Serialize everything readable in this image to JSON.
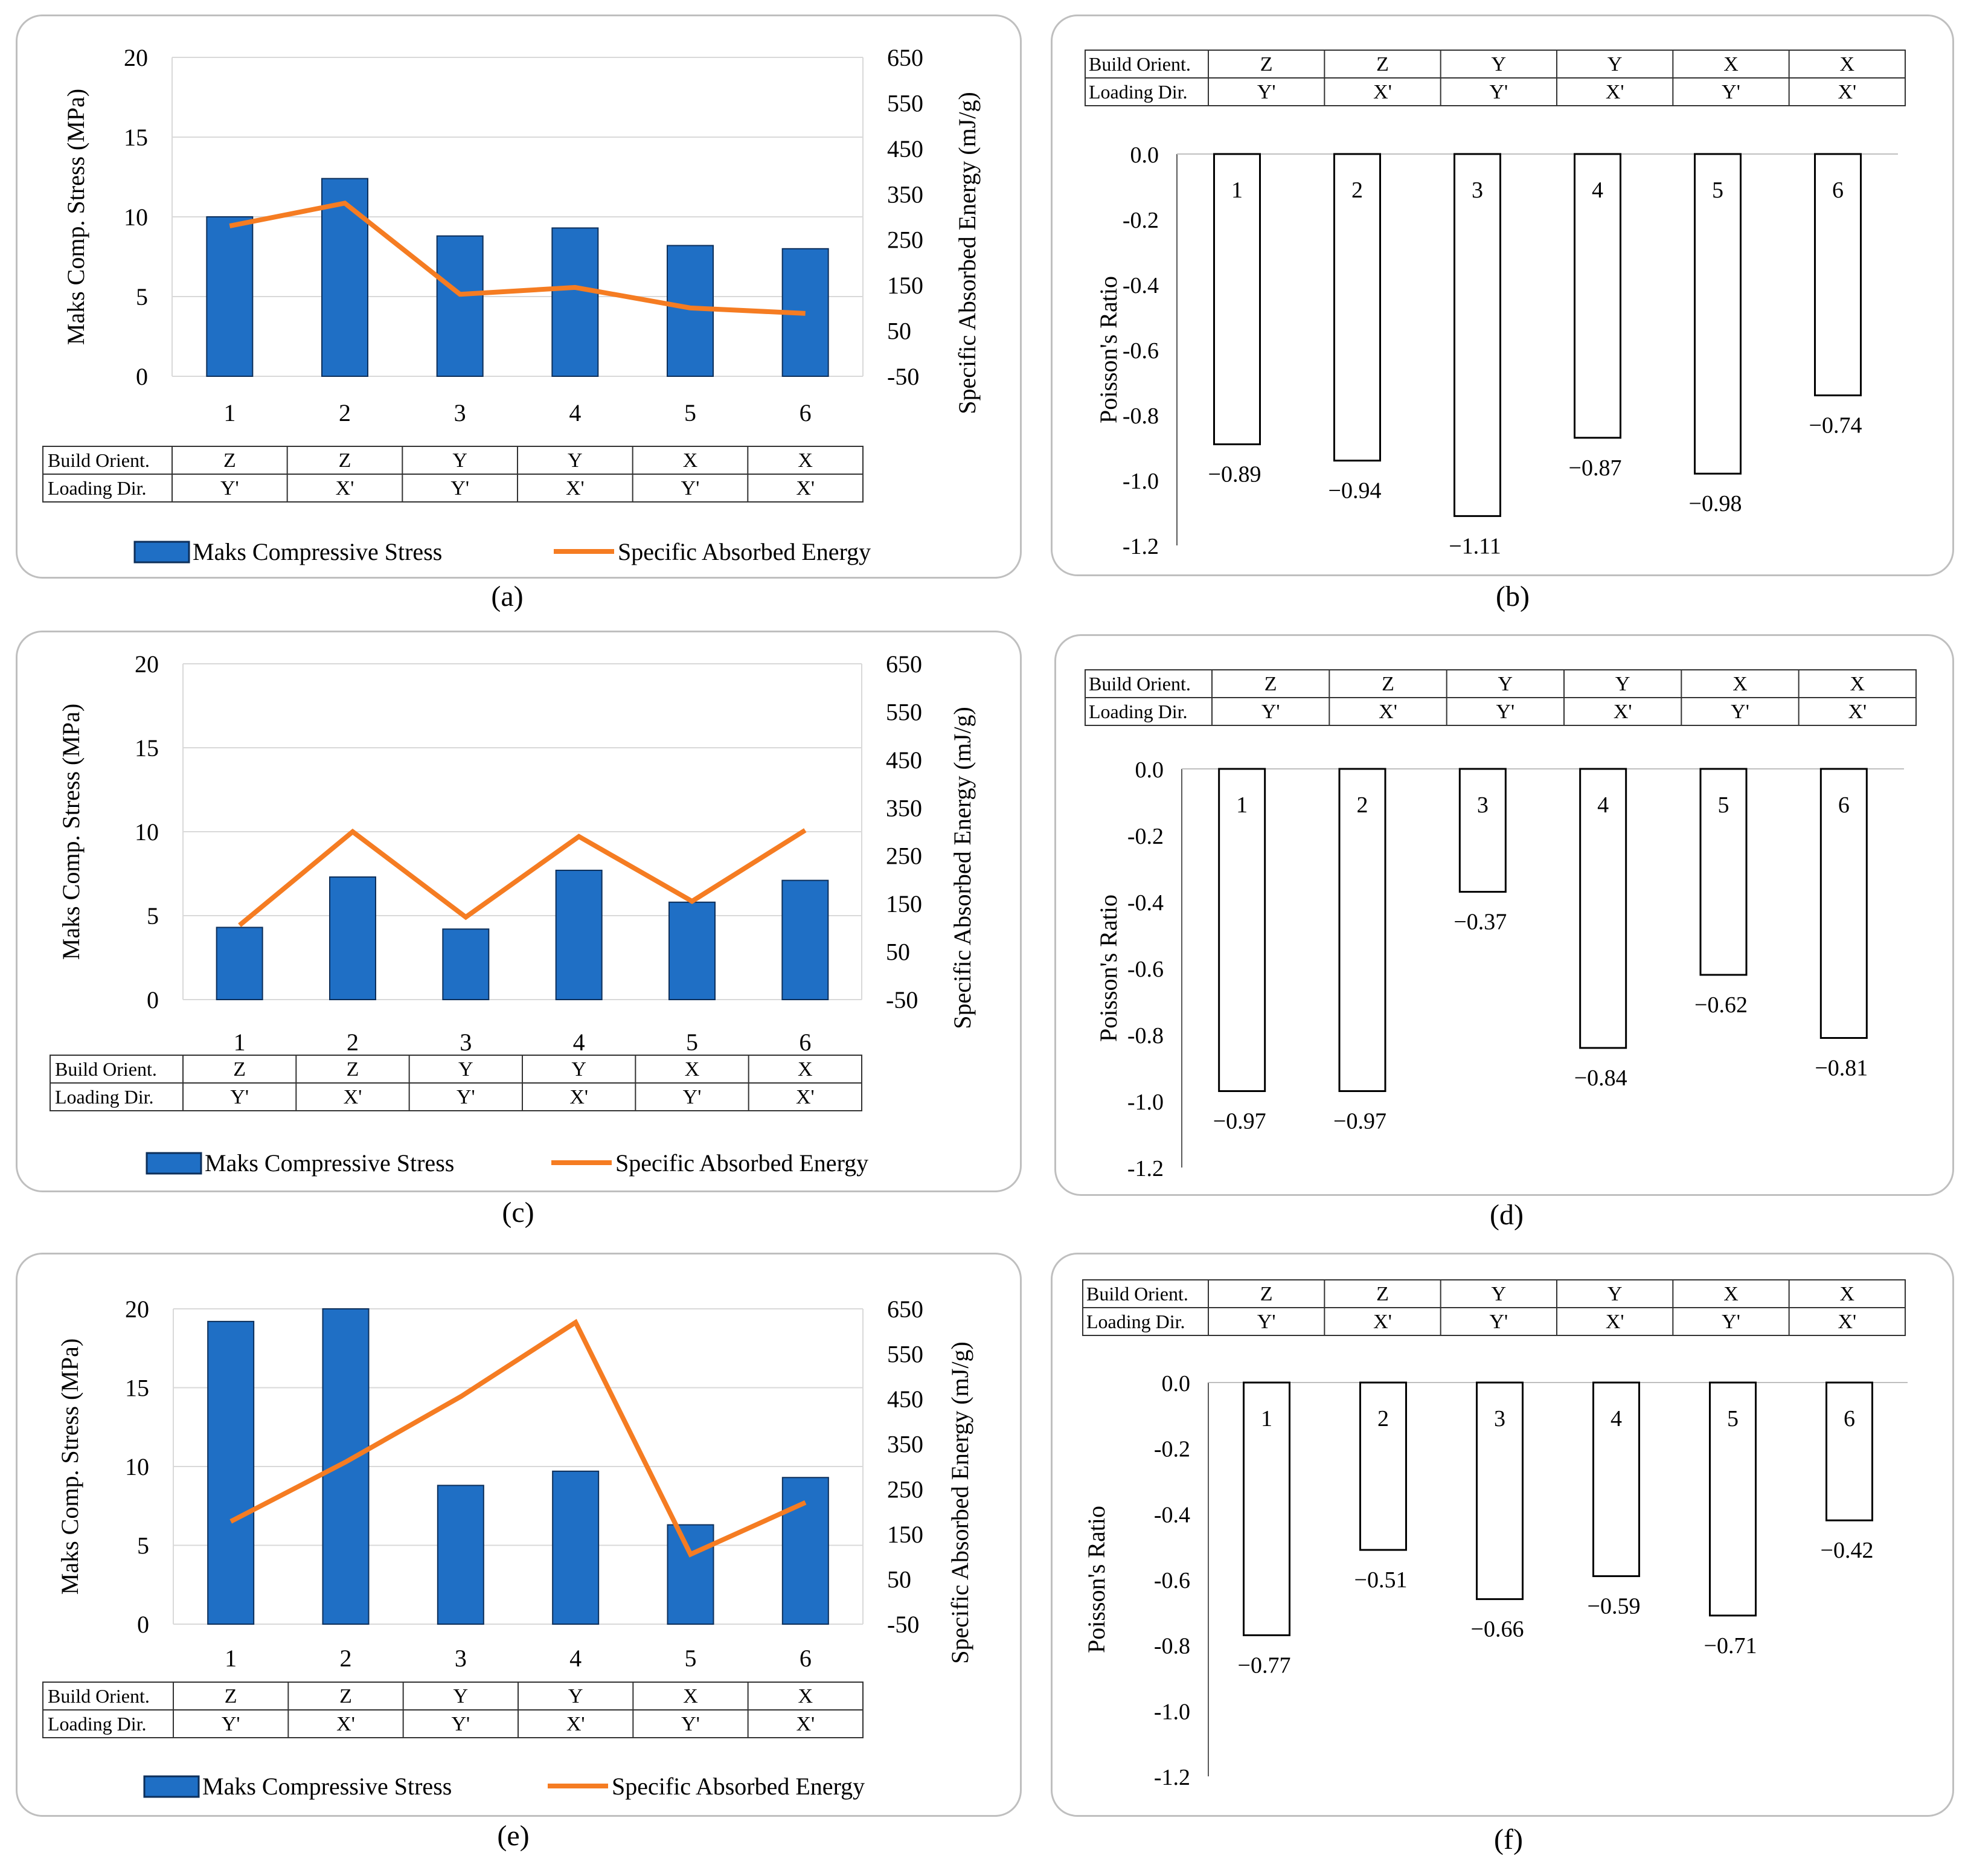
{
  "colors": {
    "bar_blue": "#1f6fc5",
    "bar_blue_edge": "#0d2f5a",
    "line_orange": "#f57c22",
    "grid": "#d9d9d9",
    "axis": "#595959",
    "panel_border": "#bfbfbf"
  },
  "table_labels": {
    "build": "Build Orient.",
    "loading": "Loading Dir."
  },
  "chart_data": [
    {
      "id": "a",
      "caption": "(a)",
      "type": "bar+line",
      "categories": [
        "1",
        "2",
        "3",
        "4",
        "5",
        "6"
      ],
      "build_orient": [
        "Z",
        "Z",
        "Y",
        "Y",
        "X",
        "X"
      ],
      "loading_dir": [
        "Y'",
        "X'",
        "Y'",
        "X'",
        "Y'",
        "X'"
      ],
      "ylabel": "Maks Comp. Stress (MPa)",
      "y2label": "Specific Absorbed Energy (mJ/g)",
      "ylim": [
        0,
        20
      ],
      "yticks": [
        "0",
        "5",
        "10",
        "15",
        "20"
      ],
      "y2lim": [
        -50,
        650
      ],
      "y2ticks": [
        "-50",
        "50",
        "150",
        "250",
        "350",
        "450",
        "550",
        "650"
      ],
      "series": [
        {
          "name": "Maks Compressive Stress",
          "type": "bar",
          "values": [
            10.0,
            12.4,
            8.8,
            9.3,
            8.2,
            8.0
          ]
        },
        {
          "name": "Specific Absorbed Energy",
          "type": "line",
          "values": [
            280,
            330,
            130,
            145,
            100,
            88
          ]
        }
      ]
    },
    {
      "id": "b",
      "caption": "(b)",
      "type": "bar",
      "categories": [
        "1",
        "2",
        "3",
        "4",
        "5",
        "6"
      ],
      "build_orient": [
        "Z",
        "Z",
        "Y",
        "Y",
        "X",
        "X"
      ],
      "loading_dir": [
        "Y'",
        "X'",
        "Y'",
        "X'",
        "Y'",
        "X'"
      ],
      "ylabel": "Poisson's Ratio",
      "ylim": [
        -1.2,
        0
      ],
      "yticks": [
        "0.0",
        "-0.2",
        "-0.4",
        "-0.6",
        "-0.8",
        "-1.0",
        "-1.2"
      ],
      "values": [
        -0.89,
        -0.94,
        -1.11,
        -0.87,
        -0.98,
        -0.74
      ],
      "value_labels": [
        "−0.89",
        "−0.94",
        "−1.11",
        "−0.87",
        "−0.98",
        "−0.74"
      ]
    },
    {
      "id": "c",
      "caption": "(c)",
      "type": "bar+line",
      "categories": [
        "1",
        "2",
        "3",
        "4",
        "5",
        "6"
      ],
      "build_orient": [
        "Z",
        "Z",
        "Y",
        "Y",
        "X",
        "X"
      ],
      "loading_dir": [
        "Y'",
        "X'",
        "Y'",
        "X'",
        "Y'",
        "X'"
      ],
      "ylabel": "Maks Comp. Stress (MPa)",
      "y2label": "Specific Absorbed Energy (mJ/g)",
      "ylim": [
        0,
        20
      ],
      "yticks": [
        "0",
        "5",
        "10",
        "15",
        "20"
      ],
      "y2lim": [
        -50,
        650
      ],
      "y2ticks": [
        "-50",
        "50",
        "150",
        "250",
        "350",
        "450",
        "550",
        "650"
      ],
      "series": [
        {
          "name": "Maks Compressive Stress",
          "type": "bar",
          "values": [
            4.3,
            7.3,
            4.2,
            7.7,
            5.8,
            7.1
          ]
        },
        {
          "name": "Specific Absorbed Energy",
          "type": "line",
          "values": [
            105,
            300,
            122,
            290,
            155,
            303
          ]
        }
      ]
    },
    {
      "id": "d",
      "caption": "(d)",
      "type": "bar",
      "categories": [
        "1",
        "2",
        "3",
        "4",
        "5",
        "6"
      ],
      "build_orient": [
        "Z",
        "Z",
        "Y",
        "Y",
        "X",
        "X"
      ],
      "loading_dir": [
        "Y'",
        "X'",
        "Y'",
        "X'",
        "Y'",
        "X'"
      ],
      "ylabel": "Poisson's Ratio",
      "ylim": [
        -1.2,
        0
      ],
      "yticks": [
        "0.0",
        "-0.2",
        "-0.4",
        "-0.6",
        "-0.8",
        "-1.0",
        "-1.2"
      ],
      "values": [
        -0.97,
        -0.97,
        -0.37,
        -0.84,
        -0.62,
        -0.81
      ],
      "value_labels": [
        "−0.97",
        "−0.97",
        "−0.37",
        "−0.84",
        "−0.62",
        "−0.81"
      ]
    },
    {
      "id": "e",
      "caption": "(e)",
      "type": "bar+line",
      "categories": [
        "1",
        "2",
        "3",
        "4",
        "5",
        "6"
      ],
      "build_orient": [
        "Z",
        "Z",
        "Y",
        "Y",
        "X",
        "X"
      ],
      "loading_dir": [
        "Y'",
        "X'",
        "Y'",
        "X'",
        "Y'",
        "X'"
      ],
      "ylabel": "Maks Comp. Stress (MPa)",
      "y2label": "Specific Absorbed Energy (mJ/g)",
      "ylim": [
        0,
        20
      ],
      "yticks": [
        "0",
        "5",
        "10",
        "15",
        "20"
      ],
      "y2lim": [
        -50,
        650
      ],
      "y2ticks": [
        "-50",
        "50",
        "150",
        "250",
        "350",
        "450",
        "550",
        "650"
      ],
      "series": [
        {
          "name": "Maks Compressive Stress",
          "type": "bar",
          "values": [
            19.2,
            20.0,
            8.8,
            9.7,
            6.3,
            9.3
          ]
        },
        {
          "name": "Specific Absorbed Energy",
          "type": "line",
          "values": [
            178,
            310,
            455,
            620,
            105,
            220
          ]
        }
      ]
    },
    {
      "id": "f",
      "caption": "(f)",
      "type": "bar",
      "categories": [
        "1",
        "2",
        "3",
        "4",
        "5",
        "6"
      ],
      "build_orient": [
        "Z",
        "Z",
        "Y",
        "Y",
        "X",
        "X"
      ],
      "loading_dir": [
        "Y'",
        "X'",
        "Y'",
        "X'",
        "Y'",
        "X'"
      ],
      "ylabel": "Poisson's Ratio",
      "ylim": [
        -1.2,
        0
      ],
      "yticks": [
        "0.0",
        "-0.2",
        "-0.4",
        "-0.6",
        "-0.8",
        "-1.0",
        "-1.2"
      ],
      "values": [
        -0.77,
        -0.51,
        -0.66,
        -0.59,
        -0.71,
        -0.42
      ],
      "value_labels": [
        "−0.77",
        "−0.51",
        "−0.66",
        "−0.59",
        "−0.71",
        "−0.42"
      ]
    }
  ]
}
